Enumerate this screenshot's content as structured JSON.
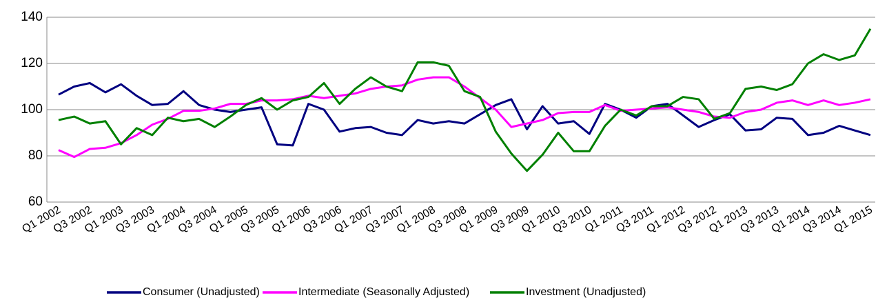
{
  "chart_data": {
    "type": "line",
    "categories": [
      "Q1 2002",
      null,
      "Q3 2002",
      null,
      "Q1 2003",
      null,
      "Q3 2003",
      null,
      "Q1 2004",
      null,
      "Q3 2004",
      null,
      "Q1 2005",
      null,
      "Q3 2005",
      null,
      "Q1 2006",
      null,
      "Q3 2006",
      null,
      "Q1 2007",
      null,
      "Q3 2007",
      null,
      "Q1 2008",
      null,
      "Q3 2008",
      null,
      "Q1 2009",
      null,
      "Q3 2009",
      null,
      "Q1 2010",
      null,
      "Q3 2010",
      null,
      "Q1 2011",
      null,
      "Q3 2011",
      null,
      "Q1 2012",
      null,
      "Q3 2012",
      null,
      "Q1 2013",
      null,
      "Q3 2013",
      null,
      "Q1 2014",
      null,
      "Q3 2014",
      null,
      "Q1 2015"
    ],
    "series": [
      {
        "name": "Consumer (Unadjusted)",
        "color": "#000080",
        "values": [
          106.5,
          110,
          111.5,
          107.5,
          111,
          106,
          102,
          102.5,
          108,
          102,
          100,
          99,
          100,
          101,
          85,
          84.5,
          102.5,
          100,
          90.5,
          92,
          92.5,
          90,
          89,
          95.5,
          94,
          95,
          94,
          98,
          102,
          104.5,
          91.5,
          101.5,
          94,
          95,
          89.5,
          102.5,
          100,
          96.5,
          101.5,
          102.5,
          97.5,
          92.5,
          95.5,
          98,
          91,
          91.5,
          96.5,
          96,
          89,
          90,
          93,
          91,
          89
        ]
      },
      {
        "name": "Intermediate (Seasonally Adjusted)",
        "color": "#ff00ff",
        "values": [
          82.5,
          79.5,
          83,
          83.5,
          85.5,
          89,
          93.5,
          96,
          99.5,
          99.5,
          100.5,
          102.5,
          102.5,
          104,
          104,
          104.5,
          106,
          105,
          106,
          107,
          109,
          110,
          110.5,
          113,
          114,
          114,
          110,
          105,
          100,
          92.5,
          94,
          95.5,
          98.5,
          99,
          99,
          102,
          99.5,
          100,
          100.5,
          101,
          100,
          99,
          97,
          96.5,
          99,
          100,
          103,
          104,
          102,
          104,
          102,
          103,
          104.5
        ]
      },
      {
        "name": "Investment (Unadjusted)",
        "color": "#008000",
        "values": [
          95.5,
          97,
          94,
          95,
          85,
          92,
          89,
          96.5,
          95,
          96,
          92.5,
          97,
          102,
          105,
          100,
          104,
          105.5,
          111.5,
          102.5,
          109,
          114,
          110,
          108,
          120.5,
          120.5,
          119,
          108,
          105.5,
          90.5,
          81,
          73.5,
          80.5,
          90,
          82,
          82,
          93,
          100,
          97.5,
          101.5,
          101.5,
          105.5,
          104.5,
          96,
          98.5,
          109,
          110,
          108.5,
          111,
          120,
          124,
          121.5,
          123.5,
          135
        ]
      }
    ],
    "ylim": [
      60,
      140
    ],
    "yticks": [
      60,
      80,
      100,
      120,
      140
    ],
    "grid": true,
    "legend": "bottom"
  }
}
